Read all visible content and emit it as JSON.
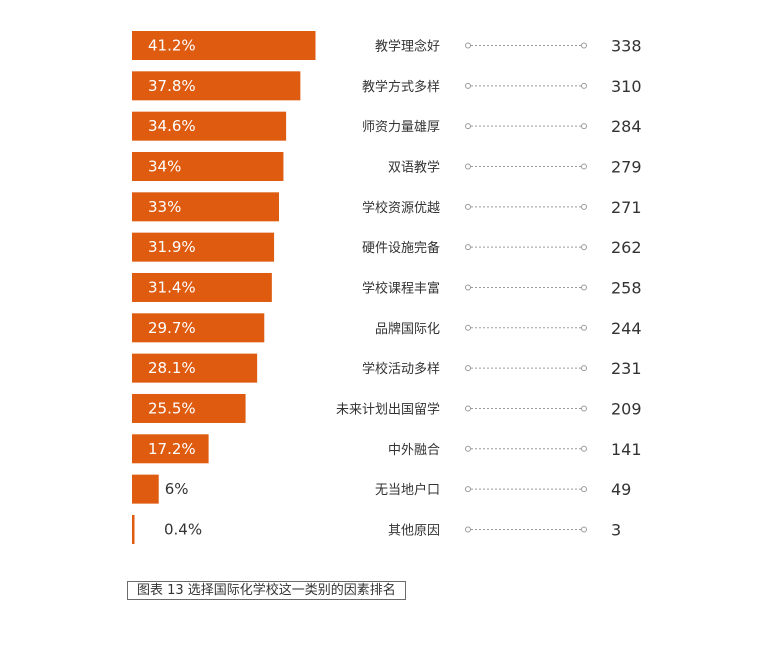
{
  "colors": {
    "bar": "#de5b10",
    "label_on_bar": "#ffffff",
    "label_off_bar": "#333333",
    "leader_line": "#9a9a9a"
  },
  "caption": "图表 13 选择国际化学校这一类别的因素排名",
  "chart_data": {
    "type": "bar",
    "orientation": "horizontal",
    "categories": [
      "教学理念好",
      "教学方式多样",
      "师资力量雄厚",
      "双语教学",
      "学校资源优越",
      "硬件设施完备",
      "学校课程丰富",
      "品牌国际化",
      "学校活动多样",
      "未来计划出国留学",
      "中外融合",
      "无当地户口",
      "其他原因"
    ],
    "values": [
      41.2,
      37.8,
      34.6,
      34,
      33,
      31.9,
      31.4,
      29.7,
      28.1,
      25.5,
      17.2,
      6,
      0.4
    ],
    "value_labels": [
      "41.2%",
      "37.8%",
      "34.6%",
      "34%",
      "33%",
      "31.9%",
      "31.4%",
      "29.7%",
      "28.1%",
      "25.5%",
      "17.2%",
      "6%",
      "0.4%"
    ],
    "counts": [
      338,
      310,
      284,
      279,
      271,
      262,
      258,
      244,
      231,
      209,
      141,
      49,
      3
    ],
    "unit": "%",
    "grid": false,
    "legend": "none"
  }
}
